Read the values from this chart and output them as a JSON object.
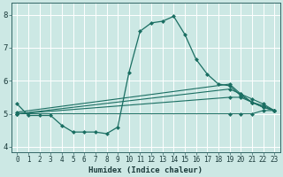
{
  "xlabel": "Humidex (Indice chaleur)",
  "xlim": [
    -0.5,
    23.5
  ],
  "ylim": [
    3.85,
    8.35
  ],
  "yticks": [
    4,
    5,
    6,
    7,
    8
  ],
  "xticks": [
    0,
    1,
    2,
    3,
    4,
    5,
    6,
    7,
    8,
    9,
    10,
    11,
    12,
    13,
    14,
    15,
    16,
    17,
    18,
    19,
    20,
    21,
    22,
    23
  ],
  "bg_color": "#cce8e4",
  "grid_color": "#b0d8d4",
  "line_color": "#1a6e62",
  "lines": [
    {
      "x": [
        0,
        1,
        2,
        3,
        4,
        5,
        6,
        7,
        8,
        9,
        10,
        11,
        12,
        13,
        14,
        15,
        16,
        17,
        18,
        19,
        20,
        21,
        22,
        23
      ],
      "y": [
        5.3,
        4.95,
        4.95,
        4.95,
        4.65,
        4.45,
        4.45,
        4.45,
        4.4,
        4.6,
        6.25,
        7.5,
        7.75,
        7.8,
        7.95,
        7.4,
        6.65,
        6.2,
        5.9,
        5.85,
        5.55,
        5.35,
        5.2,
        5.1
      ],
      "marker": true
    },
    {
      "x": [
        0,
        19,
        20,
        21,
        22,
        23
      ],
      "y": [
        5.0,
        5.0,
        5.0,
        5.0,
        5.1,
        5.1
      ],
      "marker": false
    },
    {
      "x": [
        0,
        19,
        20,
        21,
        22,
        23
      ],
      "y": [
        5.0,
        5.5,
        5.5,
        5.35,
        5.25,
        5.1
      ],
      "marker": false
    },
    {
      "x": [
        0,
        19,
        20,
        21,
        22,
        23
      ],
      "y": [
        5.0,
        5.75,
        5.6,
        5.45,
        5.3,
        5.1
      ],
      "marker": false
    },
    {
      "x": [
        0,
        19,
        20,
        21,
        22,
        23
      ],
      "y": [
        5.05,
        5.9,
        5.6,
        5.35,
        5.2,
        5.1
      ],
      "marker": false
    }
  ],
  "markersize": 2.5
}
